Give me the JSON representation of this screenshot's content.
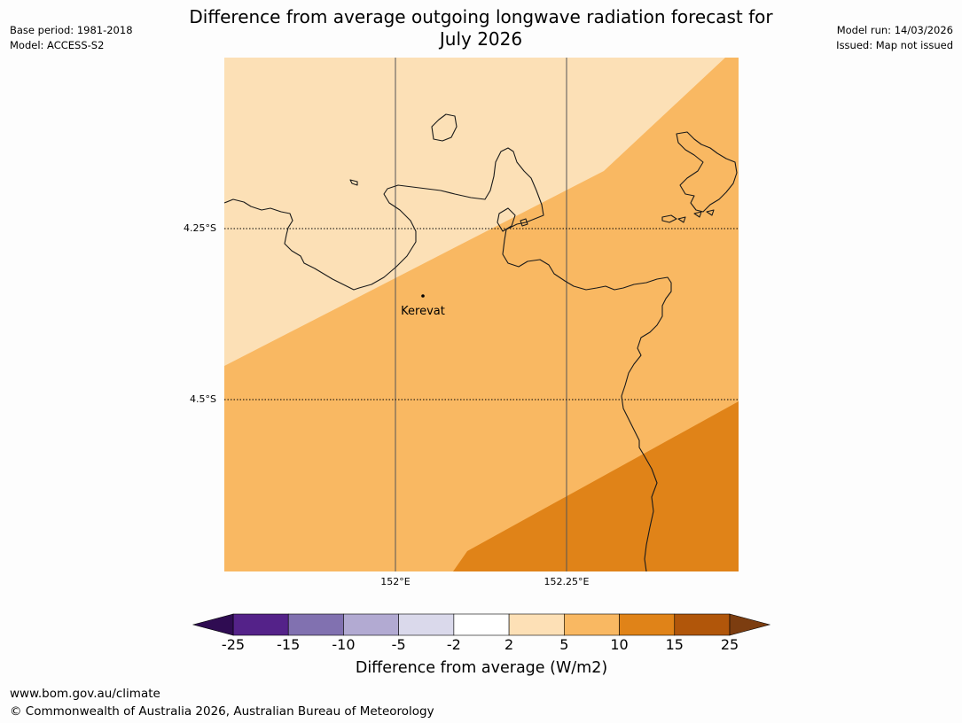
{
  "header": {
    "title_line1": "Difference from average outgoing longwave radiation forecast for",
    "title_line2": "July 2026",
    "base_period": "Base period: 1981-2018",
    "model": "Model: ACCESS-S2",
    "model_run": "Model run: 14/03/2026",
    "issued": "Issued: Map not issued"
  },
  "map": {
    "lat_labels": [
      "4.25°S",
      "4.5°S"
    ],
    "lon_labels": [
      "152°E",
      "152.25°E"
    ],
    "place": {
      "name": "Kerevat",
      "lon": 152.04,
      "lat": -4.35
    },
    "categories": [
      {
        "range": "2 to 5",
        "color": "#fce0b6"
      },
      {
        "range": "5 to 10",
        "color": "#f9b862"
      },
      {
        "range": "10 to 15",
        "color": "#e08318"
      }
    ]
  },
  "colorbar": {
    "label": "Difference from average (W/m2)",
    "ticks": [
      "-25",
      "-15",
      "-10",
      "-5",
      "-2",
      "2",
      "5",
      "10",
      "15",
      "25"
    ],
    "colors": [
      "#542289",
      "#8171b0",
      "#b2aad2",
      "#dad9eb",
      "#ffffff",
      "#fde0b6",
      "#f9b862",
      "#e08318",
      "#b1560a"
    ],
    "under_color": "#2f0c52",
    "over_color": "#7c3d10"
  },
  "footer": {
    "url": "www.bom.gov.au/climate",
    "copyright": "© Commonwealth of Australia 2026, Australian Bureau of Meteorology"
  }
}
